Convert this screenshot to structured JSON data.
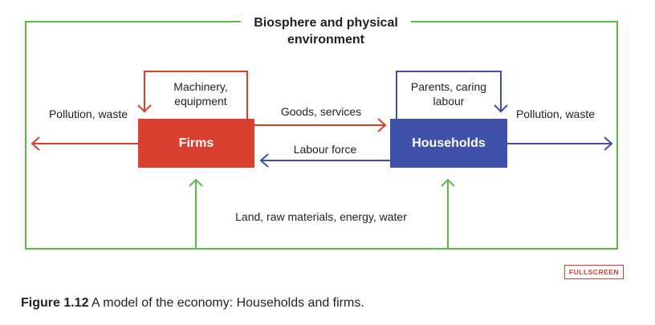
{
  "diagram": {
    "environment_title": "Biosphere and physical environment",
    "nodes": {
      "firms": "Firms",
      "households": "Households"
    },
    "edges": {
      "goods_services": "Goods, services",
      "labour_force": "Labour force",
      "machinery": "Machinery, equipment",
      "parents_caring": "Parents, caring labour",
      "pollution_left": "Pollution, waste",
      "pollution_right": "Pollution, waste",
      "resources": "Land, raw materials, energy, water"
    },
    "colors": {
      "firms": "#d94030",
      "households": "#3f51a8",
      "environment": "#5db84a"
    }
  },
  "fullscreen_label": "FULLSCREEN",
  "caption": {
    "label": "Figure 1.12",
    "text": "A model of the economy: Households and firms."
  }
}
